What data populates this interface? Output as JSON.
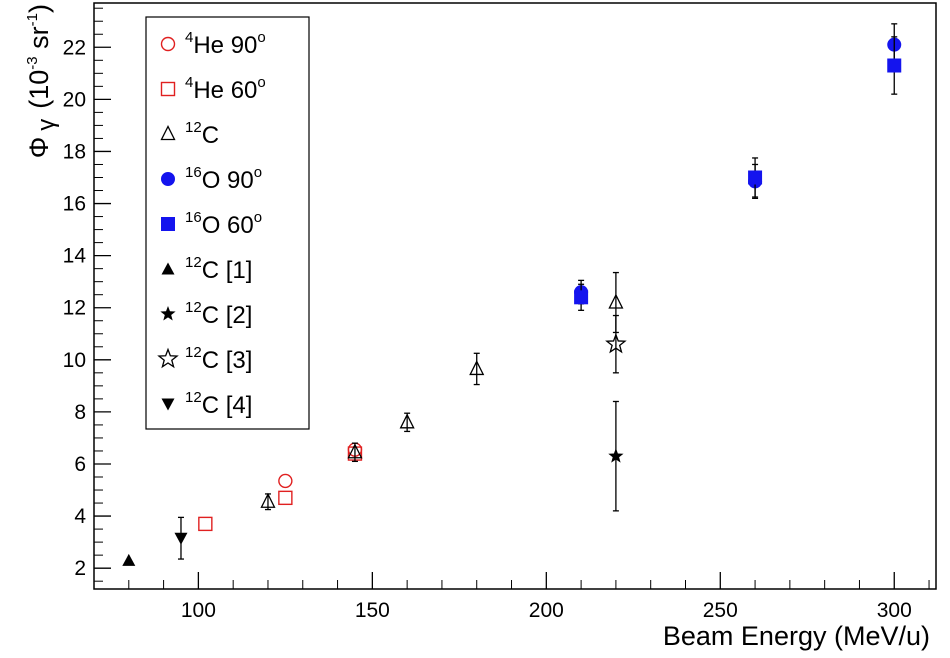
{
  "chart_data": {
    "type": "scatter",
    "title": "",
    "xlabel": "Beam Energy (MeV/u)",
    "ylabel": {
      "symbol": "Φ",
      "subscript": "γ",
      "unit_open": "(10",
      "unit_exp": "-3",
      "unit_mid": " sr",
      "unit_exp2": "-1",
      "unit_close": ")"
    },
    "xlim": [
      70,
      312
    ],
    "ylim": [
      1.2,
      23.7
    ],
    "xticks": [
      100,
      150,
      200,
      250,
      300
    ],
    "yticks": [
      2,
      4,
      6,
      8,
      10,
      12,
      14,
      16,
      18,
      20,
      22
    ],
    "grid": false,
    "legend_position": "top-left",
    "series": [
      {
        "name": "4He 90o",
        "label": {
          "pre": "",
          "sup1": "4",
          "base": "He 90",
          "sup2": "o",
          "post": ""
        },
        "marker": "circle-open",
        "color": "#e02020",
        "points": [
          {
            "x": 125,
            "y": 5.35
          },
          {
            "x": 145,
            "y": 6.55
          }
        ]
      },
      {
        "name": "4He 60o",
        "label": {
          "pre": "",
          "sup1": "4",
          "base": "He 60",
          "sup2": "o",
          "post": ""
        },
        "marker": "square-open",
        "color": "#e02020",
        "points": [
          {
            "x": 102,
            "y": 3.7
          },
          {
            "x": 125,
            "y": 4.7
          },
          {
            "x": 145,
            "y": 6.4
          }
        ]
      },
      {
        "name": "12C",
        "label": {
          "pre": "",
          "sup1": "12",
          "base": "C",
          "sup2": "",
          "post": ""
        },
        "marker": "triangle-open",
        "color": "#000000",
        "points": [
          {
            "x": 120,
            "y": 4.55,
            "err": 0.3
          },
          {
            "x": 145,
            "y": 6.45,
            "err": 0.35
          },
          {
            "x": 160,
            "y": 7.6,
            "err": 0.35
          },
          {
            "x": 180,
            "y": 9.65,
            "err": 0.6
          },
          {
            "x": 220,
            "y": 12.2,
            "err": 1.15
          }
        ]
      },
      {
        "name": "16O 90o",
        "label": {
          "pre": "",
          "sup1": "16",
          "base": "O 90",
          "sup2": "o",
          "post": ""
        },
        "marker": "circle-filled",
        "color": "#1414ee",
        "points": [
          {
            "x": 210,
            "y": 12.6,
            "err": 0.45
          },
          {
            "x": 260,
            "y": 16.85,
            "err": 0.65
          },
          {
            "x": 300,
            "y": 22.1,
            "err": 0.8
          }
        ]
      },
      {
        "name": "16O 60o",
        "label": {
          "pre": "",
          "sup1": "16",
          "base": "O 60",
          "sup2": "o",
          "post": ""
        },
        "marker": "square-filled",
        "color": "#1414ee",
        "points": [
          {
            "x": 210,
            "y": 12.4,
            "err": 0.5
          },
          {
            "x": 260,
            "y": 17.0,
            "err": 0.75
          },
          {
            "x": 300,
            "y": 21.3,
            "err": 1.1
          }
        ]
      },
      {
        "name": "12C [1]",
        "label": {
          "pre": "",
          "sup1": "12",
          "base": "C [1]",
          "sup2": "",
          "post": ""
        },
        "marker": "triangle-filled",
        "color": "#000000",
        "points": [
          {
            "x": 80,
            "y": 2.3
          }
        ]
      },
      {
        "name": "12C [2]",
        "label": {
          "pre": "",
          "sup1": "12",
          "base": "C [2]",
          "sup2": "",
          "post": ""
        },
        "marker": "star-filled",
        "color": "#000000",
        "points": [
          {
            "x": 220,
            "y": 6.3,
            "err": 2.1
          }
        ]
      },
      {
        "name": "12C [3]",
        "label": {
          "pre": "",
          "sup1": "12",
          "base": "C [3]",
          "sup2": "",
          "post": ""
        },
        "marker": "star-open",
        "color": "#000000",
        "points": [
          {
            "x": 220,
            "y": 10.6,
            "err": 1.1
          }
        ]
      },
      {
        "name": "12C [4]",
        "label": {
          "pre": "",
          "sup1": "12",
          "base": "C [4]",
          "sup2": "",
          "post": ""
        },
        "marker": "triangle-down-filled",
        "color": "#000000",
        "points": [
          {
            "x": 95,
            "y": 3.15,
            "err": 0.8
          }
        ]
      }
    ]
  }
}
